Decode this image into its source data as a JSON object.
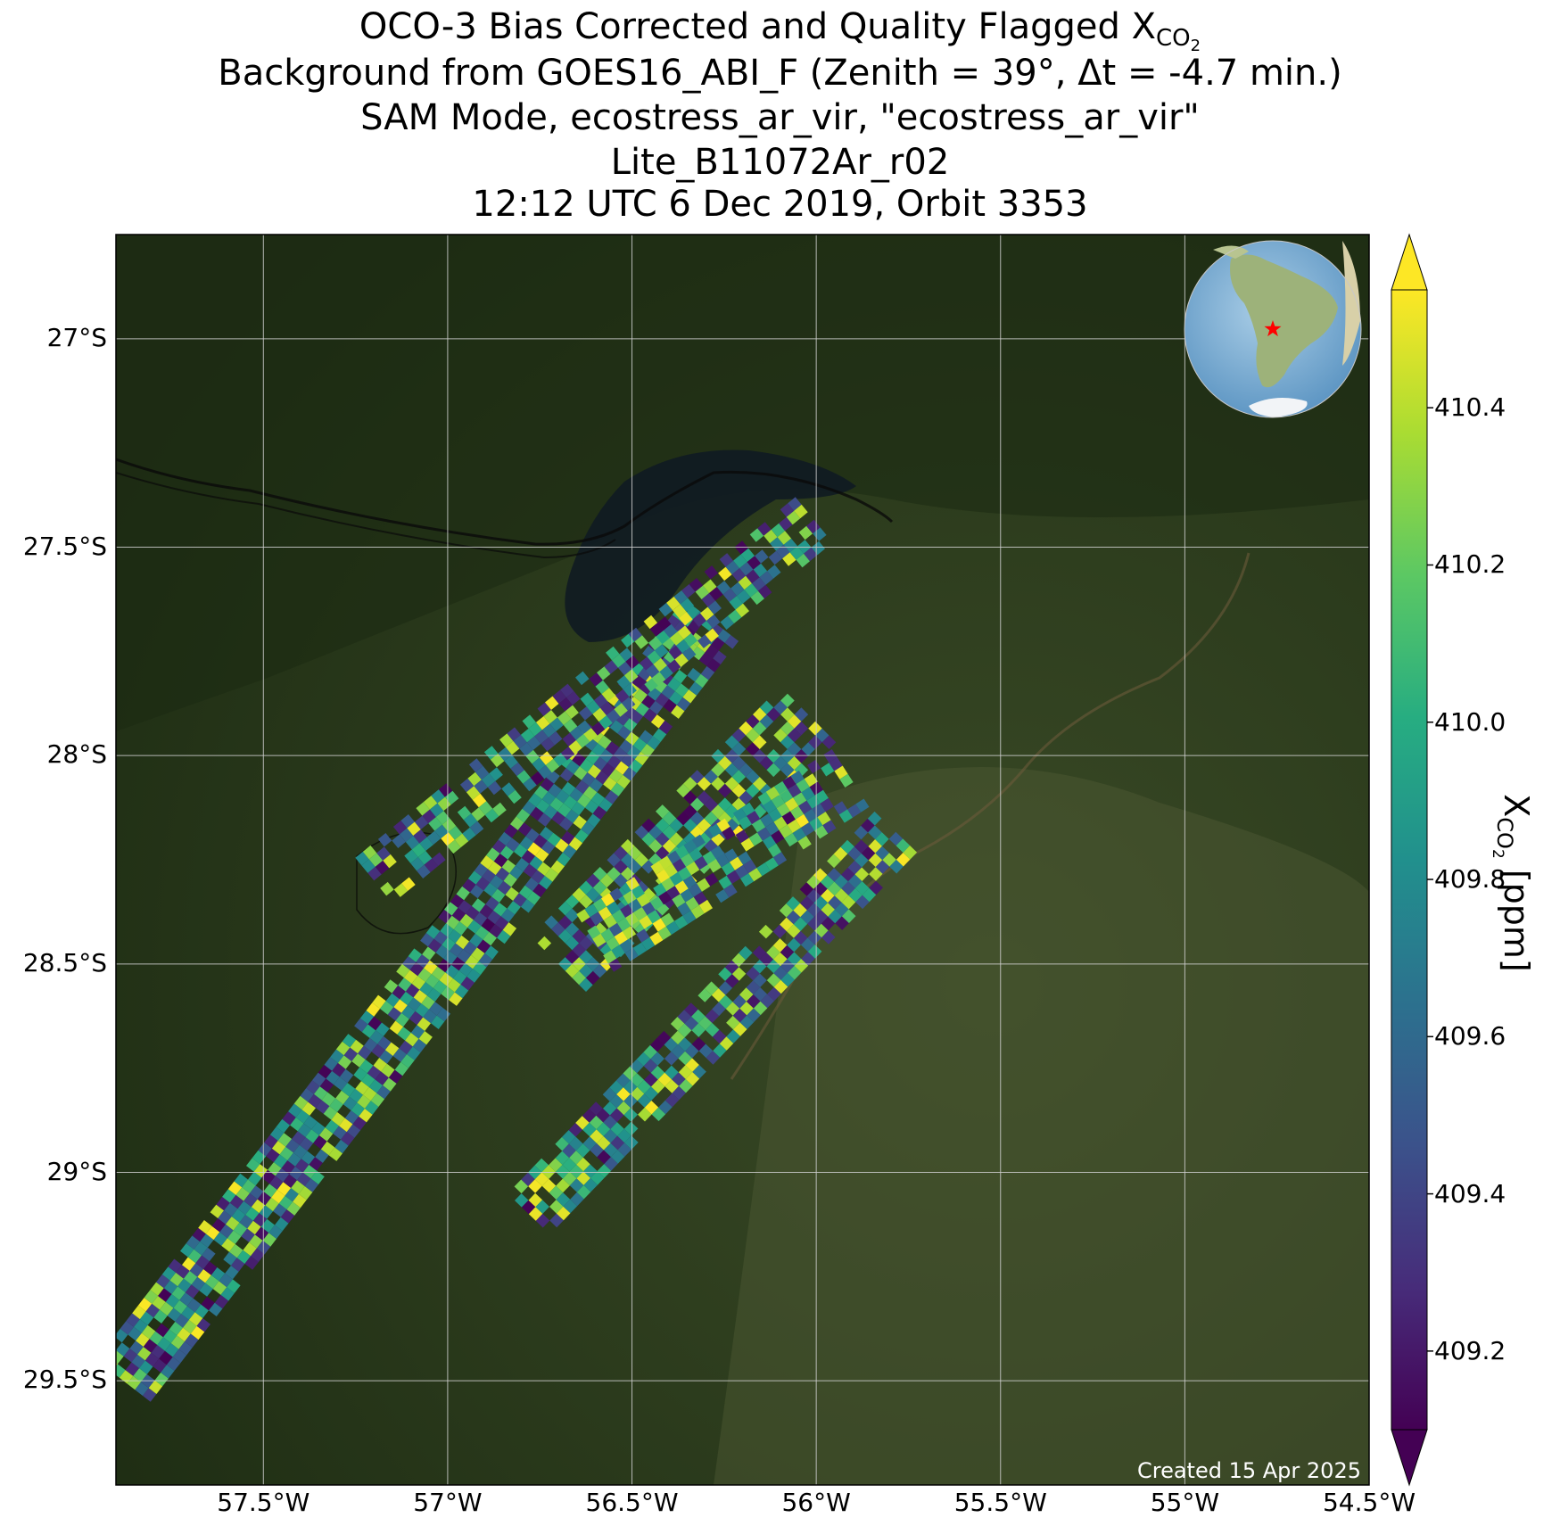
{
  "title": {
    "line1_prefix": "OCO-3 Bias Corrected and Quality Flagged X",
    "line1_sub": "CO",
    "line1_subsub": "2",
    "line2": "Background from GOES16_ABI_F (Zenith = 39°, Δt = -4.7 min.)",
    "line3": "SAM Mode, ecostress_ar_vir, \"ecostress_ar_vir\"",
    "line4": "Lite_B11072Ar_r02",
    "line5": "12:12 UTC 6 Dec 2019, Orbit 3353"
  },
  "map": {
    "lon_ticks": [
      "57.5°W",
      "57°W",
      "56.5°W",
      "56°W",
      "55.5°W",
      "55°W",
      "54.5°W"
    ],
    "lat_ticks": [
      "27°S",
      "27.5°S",
      "28°S",
      "28.5°S",
      "29°S",
      "29.5°S"
    ],
    "lon_values": [
      -57.5,
      -57.0,
      -56.5,
      -56.0,
      -55.5,
      -55.0,
      -54.5
    ],
    "lat_values": [
      -27.0,
      -27.5,
      -28.0,
      -28.5,
      -29.0,
      -29.5
    ],
    "lon_range": [
      -57.9,
      -54.5
    ],
    "lat_range": [
      -29.75,
      -26.75
    ],
    "created": "Created 15 Apr 2025",
    "inset_marker": "red-star",
    "colors": {
      "background": "#2a3a1c",
      "grid": "#d0d0d0",
      "marker": "#ff0000"
    }
  },
  "colorbar": {
    "label_main": "X",
    "label_sub": "CO",
    "label_subsub": "2",
    "label_unit": " [ppm]",
    "ticks": [
      "409.2",
      "409.4",
      "409.6",
      "409.8",
      "410.0",
      "410.2",
      "410.4"
    ],
    "tick_values": [
      409.2,
      409.4,
      409.6,
      409.8,
      410.0,
      410.2,
      410.4
    ],
    "range": [
      409.1,
      410.55
    ],
    "colormap": "viridis",
    "extend": "both"
  },
  "chart_data": {
    "type": "heatmap",
    "value_range": [
      409.1,
      410.55
    ],
    "units": "ppm",
    "swaths": [
      {
        "start": [
          -57.88,
          -29.5
        ],
        "end": [
          -56.28,
          -27.67
        ],
        "width_deg": 0.2,
        "coverage": 0.85
      },
      {
        "start": [
          -57.2,
          -28.3
        ],
        "end": [
          -56.0,
          -27.43
        ],
        "width_deg": 0.18,
        "coverage": 0.7
      },
      {
        "start": [
          -56.7,
          -28.5
        ],
        "end": [
          -56.02,
          -27.9
        ],
        "width_deg": 0.22,
        "coverage": 0.75
      },
      {
        "start": [
          -56.6,
          -28.45
        ],
        "end": [
          -55.9,
          -28.05
        ],
        "width_deg": 0.2,
        "coverage": 0.8
      },
      {
        "start": [
          -56.78,
          -29.1
        ],
        "end": [
          -55.77,
          -28.17
        ],
        "width_deg": 0.16,
        "coverage": 0.75
      }
    ]
  }
}
